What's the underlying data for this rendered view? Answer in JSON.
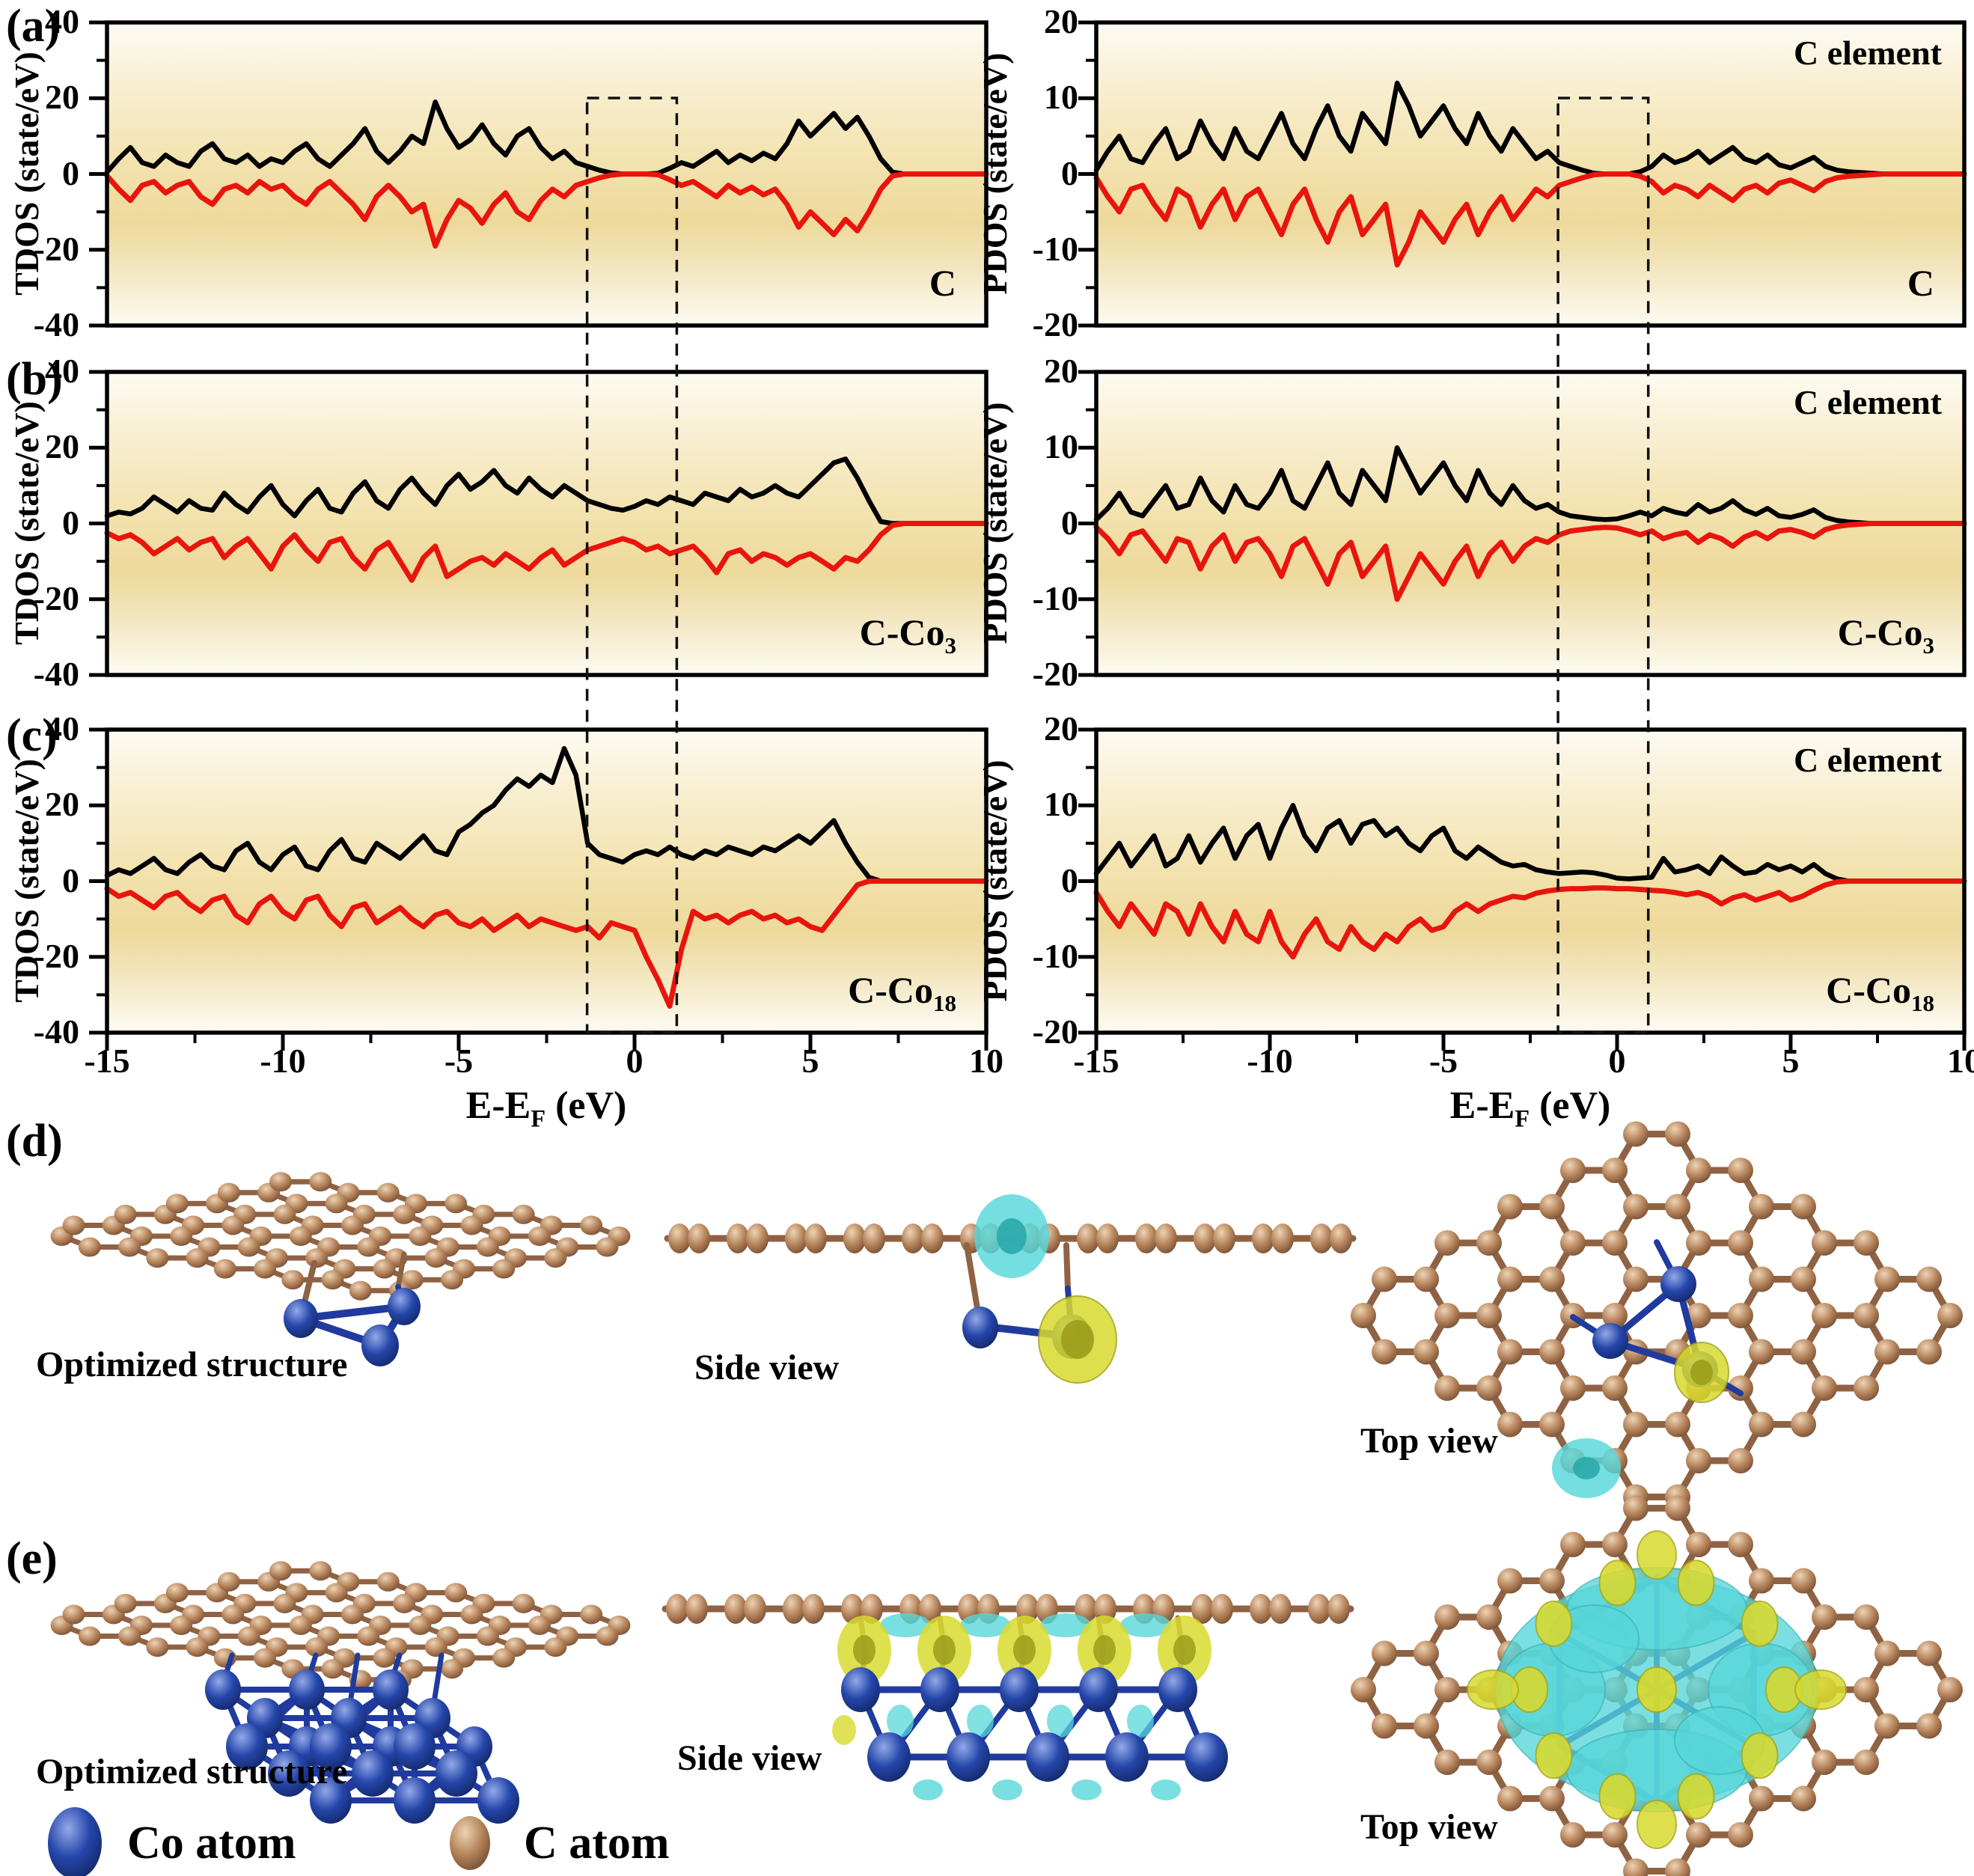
{
  "figure": {
    "panels": {
      "a": "(a)",
      "b": "(b)",
      "c": "(c)",
      "d": "(d)",
      "e": "(e)"
    }
  },
  "colors": {
    "spin_up": "#000000",
    "spin_down": "#e8150d",
    "plot_border": "#000000",
    "plot_bg_top": "#fdfbf2",
    "plot_bg_mid": "#efdc9e",
    "c_atom": "#a4714c",
    "c_bond": "#8f6243",
    "co_atom": "#1c3fa8",
    "co_bond": "#203a9e",
    "isosurface_accumulation": "#d9da2e",
    "isosurface_depletion": "#57d7da"
  },
  "dos": {
    "tdos_ylabel": "TDOS (state/eV)",
    "pdos_ylabel": "PDOS (state/eV)",
    "xlabel": {
      "pre": "E-E",
      "sub": "F",
      "post": " (eV)"
    },
    "x_ticks": [
      -15,
      -10,
      -5,
      0,
      5,
      10
    ],
    "x_minor_ticks": [
      -12.5,
      -7.5,
      -2.5,
      2.5,
      7.5
    ],
    "corner_label": "C element",
    "fermi_window_note": "dashed box spanning panels a-c around E-EF = 0"
  },
  "chart_data": [
    {
      "id": "tdos-a",
      "type": "line",
      "panel": "a",
      "quantity": "TDOS",
      "bottom_label": {
        "main": "C",
        "sub": ""
      },
      "xlim": [
        -15,
        10
      ],
      "ylim": [
        -40,
        40
      ],
      "yticks": [
        40,
        20,
        0,
        -20,
        -40
      ],
      "x_start": -15,
      "x_step": 0.33333,
      "series": [
        {
          "name": "spin-up",
          "values": [
            0.5,
            4,
            7,
            3,
            2,
            5,
            3,
            2,
            6,
            8,
            4,
            3,
            5,
            2,
            4,
            3,
            6,
            8,
            4,
            2,
            5,
            8,
            12,
            6,
            3,
            6,
            10,
            8,
            19,
            12,
            7,
            9,
            13,
            8,
            5,
            10,
            12,
            7,
            4,
            6,
            3,
            2,
            1,
            0.3,
            0,
            0,
            0,
            0.2,
            1.5,
            3,
            2,
            4,
            6,
            3,
            5,
            3.5,
            5.5,
            4,
            8,
            14,
            10,
            13,
            16,
            12,
            15,
            10,
            4,
            0.5,
            0,
            0,
            0,
            0,
            0,
            0,
            0,
            0
          ]
        },
        {
          "name": "spin-down",
          "mirror_of": 0
        }
      ]
    },
    {
      "id": "pdos-a",
      "type": "line",
      "panel": "a",
      "quantity": "PDOS",
      "corner_label": "C element",
      "bottom_label": {
        "main": "C",
        "sub": ""
      },
      "xlim": [
        -15,
        10
      ],
      "ylim": [
        -20,
        20
      ],
      "yticks": [
        20,
        10,
        0,
        -10,
        -20
      ],
      "x_start": -15,
      "x_step": 0.33333,
      "series": [
        {
          "name": "spin-up",
          "values": [
            0.5,
            3,
            5,
            2,
            1.5,
            4,
            6,
            2,
            3,
            7,
            4,
            2,
            6,
            3,
            2,
            5,
            8,
            4,
            2,
            6,
            9,
            5,
            3,
            8,
            6,
            4,
            12,
            9,
            5,
            7,
            9,
            6,
            4,
            8,
            5,
            3,
            6,
            4,
            2,
            3,
            1.5,
            1,
            0.5,
            0.1,
            0,
            0,
            0,
            0.3,
            1,
            2.5,
            1.5,
            2,
            3,
            1.5,
            2.5,
            3.5,
            2,
            1.5,
            2.5,
            1.2,
            0.8,
            1.5,
            2.2,
            1,
            0.5,
            0.3,
            0.2,
            0.1,
            0,
            0,
            0,
            0,
            0,
            0,
            0,
            0
          ]
        },
        {
          "name": "spin-down",
          "mirror_of": 0
        }
      ]
    },
    {
      "id": "tdos-b",
      "type": "line",
      "panel": "b",
      "quantity": "TDOS",
      "bottom_label": {
        "main": "C-Co",
        "sub": "3"
      },
      "xlim": [
        -15,
        10
      ],
      "ylim": [
        -40,
        40
      ],
      "yticks": [
        40,
        20,
        0,
        -20,
        -40
      ],
      "x_start": -15,
      "x_step": 0.33333,
      "series": [
        {
          "name": "spin-up",
          "values": [
            2,
            3,
            2.5,
            4,
            7,
            5,
            3,
            6,
            4,
            3.5,
            8,
            5,
            3,
            7,
            10,
            5,
            2,
            6,
            9,
            4,
            3,
            8,
            11,
            6,
            4,
            9,
            12,
            8,
            5,
            10,
            13,
            9,
            11,
            14,
            10,
            8,
            12,
            9,
            7,
            10,
            8,
            6,
            5,
            4,
            3.5,
            4.5,
            6,
            5,
            7,
            6,
            5,
            8,
            7,
            6,
            9,
            7,
            8,
            10,
            8,
            7,
            10,
            13,
            16,
            17,
            12,
            6,
            0.5,
            0,
            0,
            0,
            0,
            0,
            0,
            0,
            0,
            0
          ]
        },
        {
          "name": "spin-down",
          "values": [
            -2.5,
            -4,
            -3,
            -5,
            -8,
            -6,
            -4,
            -7,
            -5,
            -4,
            -9,
            -6,
            -4,
            -8,
            -12,
            -6,
            -3,
            -7,
            -10,
            -5,
            -4,
            -9,
            -12,
            -7,
            -5,
            -10,
            -15,
            -9,
            -6,
            -14,
            -12,
            -10,
            -9,
            -11,
            -8,
            -10,
            -12,
            -9,
            -7,
            -11,
            -9,
            -7,
            -6,
            -5,
            -4,
            -5,
            -7,
            -6,
            -8,
            -7,
            -6,
            -9,
            -13,
            -8,
            -7,
            -10,
            -8,
            -9,
            -11,
            -9,
            -8,
            -10,
            -12,
            -9,
            -10,
            -7,
            -3,
            -0.5,
            0,
            0,
            0,
            0,
            0,
            0,
            0,
            0
          ]
        }
      ]
    },
    {
      "id": "pdos-b",
      "type": "line",
      "panel": "b",
      "quantity": "PDOS",
      "corner_label": "C element",
      "bottom_label": {
        "main": "C-Co",
        "sub": "3"
      },
      "xlim": [
        -15,
        10
      ],
      "ylim": [
        -20,
        20
      ],
      "yticks": [
        20,
        10,
        0,
        -10,
        -20
      ],
      "x_start": -15,
      "x_step": 0.33333,
      "series": [
        {
          "name": "spin-up",
          "values": [
            0.5,
            2,
            4,
            1.5,
            1,
            3,
            5,
            2,
            2.5,
            6,
            3,
            1.5,
            5,
            2.5,
            2,
            4,
            7,
            3,
            2,
            5,
            8,
            4,
            2.5,
            7,
            5,
            3,
            10,
            7,
            4,
            6,
            8,
            5,
            3,
            7,
            4,
            2.5,
            5,
            3,
            2,
            2.5,
            1.5,
            1,
            0.8,
            0.6,
            0.5,
            0.6,
            1,
            1.5,
            1,
            2,
            1.5,
            1.2,
            2.5,
            1.5,
            2,
            3,
            1.8,
            1.2,
            2,
            1,
            0.8,
            1.2,
            1.8,
            0.8,
            0.4,
            0.2,
            0.1,
            0,
            0,
            0,
            0,
            0,
            0,
            0,
            0,
            0
          ]
        },
        {
          "name": "spin-down",
          "mirror_of": 0
        }
      ]
    },
    {
      "id": "tdos-c",
      "type": "line",
      "panel": "c",
      "quantity": "TDOS",
      "bottom_label": {
        "main": "C-Co",
        "sub": "18"
      },
      "xlim": [
        -15,
        10
      ],
      "ylim": [
        -40,
        40
      ],
      "yticks": [
        40,
        20,
        0,
        -20,
        -40
      ],
      "x_start": -15,
      "x_step": 0.33333,
      "series": [
        {
          "name": "spin-up",
          "values": [
            1.5,
            3,
            2,
            4,
            6,
            3,
            2,
            5,
            7,
            4,
            3,
            8,
            10,
            5,
            3,
            7,
            9,
            4,
            3,
            8,
            11,
            6,
            5,
            10,
            8,
            6,
            9,
            12,
            8,
            7,
            13,
            15,
            18,
            20,
            24,
            27,
            25,
            28,
            26,
            35,
            28,
            10,
            7,
            6,
            5,
            7,
            8,
            7,
            9,
            7,
            6,
            8,
            7,
            9,
            8,
            7,
            9,
            8,
            10,
            12,
            10,
            13,
            16,
            10,
            5,
            1,
            0,
            0,
            0,
            0,
            0,
            0,
            0,
            0,
            0,
            0
          ]
        },
        {
          "name": "spin-down",
          "values": [
            -2,
            -4,
            -3,
            -5,
            -7,
            -4,
            -3,
            -6,
            -8,
            -5,
            -4,
            -9,
            -11,
            -6,
            -4,
            -8,
            -10,
            -5,
            -4,
            -9,
            -12,
            -7,
            -6,
            -11,
            -9,
            -7,
            -10,
            -12,
            -9,
            -8,
            -11,
            -12,
            -10,
            -13,
            -11,
            -9,
            -12,
            -10,
            -11,
            -12,
            -13,
            -12,
            -15,
            -11,
            -12,
            -13,
            -20,
            -26,
            -33,
            -18,
            -8,
            -10,
            -9,
            -11,
            -9,
            -8,
            -10,
            -9,
            -11,
            -10,
            -12,
            -13,
            -9,
            -5,
            -1,
            0,
            0,
            0,
            0,
            0,
            0,
            0,
            0,
            0,
            0,
            0
          ]
        }
      ]
    },
    {
      "id": "pdos-c",
      "type": "line",
      "panel": "c",
      "quantity": "PDOS",
      "corner_label": "C element",
      "bottom_label": {
        "main": "C-Co",
        "sub": "18"
      },
      "xlim": [
        -15,
        10
      ],
      "ylim": [
        -20,
        20
      ],
      "yticks": [
        20,
        10,
        0,
        -10,
        -20
      ],
      "x_start": -15,
      "x_step": 0.33333,
      "series": [
        {
          "name": "spin-up",
          "values": [
            1,
            3,
            5,
            2,
            4,
            6,
            2,
            3,
            6,
            2.5,
            5,
            7,
            3,
            6,
            7.5,
            3,
            7,
            10,
            6,
            4,
            7,
            8,
            5,
            7.5,
            8,
            6,
            7,
            5,
            4,
            6,
            7,
            4,
            3,
            4.5,
            3.5,
            2.5,
            2,
            2.2,
            1.5,
            1.2,
            1,
            1.1,
            1.2,
            1.1,
            0.8,
            0.4,
            0.3,
            0.4,
            0.5,
            3,
            1.2,
            1.5,
            2,
            1,
            3.2,
            2,
            1,
            1.2,
            2.2,
            1.5,
            2,
            1.2,
            2.2,
            1,
            0.3,
            0,
            0,
            0,
            0,
            0,
            0,
            0,
            0,
            0,
            0,
            0
          ]
        },
        {
          "name": "spin-down",
          "values": [
            -1.5,
            -4,
            -6,
            -3,
            -5,
            -7,
            -3,
            -4,
            -7,
            -3,
            -6,
            -8,
            -4,
            -7,
            -8,
            -4,
            -8,
            -10,
            -7,
            -5,
            -8,
            -9,
            -6,
            -8,
            -9,
            -7,
            -8,
            -6,
            -5,
            -6.5,
            -6,
            -4,
            -3,
            -4,
            -3,
            -2.5,
            -2,
            -2.2,
            -1.6,
            -1.3,
            -1.1,
            -1,
            -1,
            -0.9,
            -0.9,
            -1,
            -1,
            -1.1,
            -1.2,
            -1.3,
            -1.5,
            -1.8,
            -1.5,
            -2,
            -3,
            -2.2,
            -1.8,
            -2.5,
            -2,
            -1.5,
            -2.5,
            -2,
            -1.2,
            -0.5,
            -0.1,
            0,
            0,
            0,
            0,
            0,
            0,
            0,
            0,
            0,
            0,
            0
          ]
        }
      ]
    }
  ],
  "structures": {
    "d": {
      "views": [
        {
          "caption": "Optimized structure"
        },
        {
          "caption": "Side view"
        },
        {
          "caption": "Top view"
        }
      ]
    },
    "e": {
      "views": [
        {
          "caption": "Optimized structure"
        },
        {
          "caption": "Side view"
        },
        {
          "caption": "Top view"
        }
      ]
    }
  },
  "legend": {
    "items": [
      {
        "label": "Co atom"
      },
      {
        "label": "C atom"
      }
    ]
  }
}
